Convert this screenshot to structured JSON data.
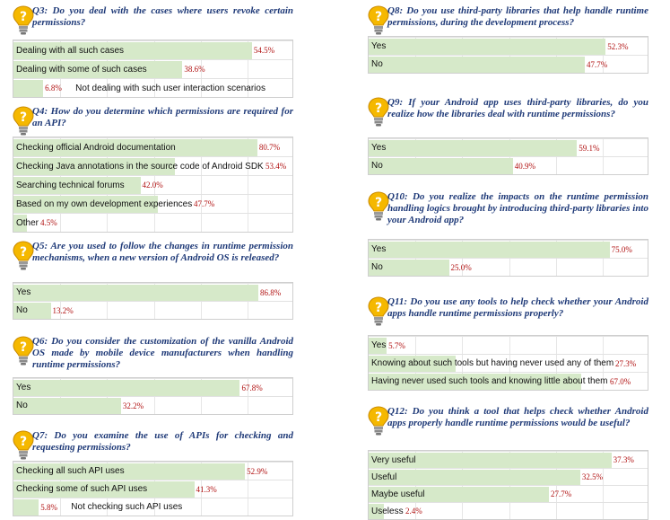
{
  "chart_data": [
    {
      "type": "bar",
      "title": "Q3: Do you deal with the cases where users revoke certain permissions?",
      "categories": [
        "Dealing with all such cases",
        "Dealing with some of such cases",
        "Not dealing with such user interaction scenarios"
      ],
      "values": [
        54.5,
        38.6,
        6.8
      ],
      "value_labels": [
        "54.5%",
        "38.6%",
        "6.8%"
      ]
    },
    {
      "type": "bar",
      "title": "Q4: How do you determine which permissions are required for an API?",
      "categories": [
        "Checking official Android documentation",
        "Checking Java annotations in the source code of Android SDK",
        "Searching technical forums",
        "Based on my own development experiences",
        "Other"
      ],
      "values": [
        80.7,
        53.4,
        42.0,
        47.7,
        4.5
      ],
      "value_labels": [
        "80.7%",
        "53.4%",
        "42.0%",
        "47.7%",
        "4.5%"
      ]
    },
    {
      "type": "bar",
      "title": "Q5: Are you used to follow the changes in runtime permission mechanisms, when a new version of Android OS is released?",
      "categories": [
        "Yes",
        "No"
      ],
      "values": [
        86.8,
        13.2
      ],
      "value_labels": [
        "86.8%",
        "13.2%"
      ]
    },
    {
      "type": "bar",
      "title": "Q6: Do you consider the customization of the vanilla Android OS made by mobile device manufacturers when handling runtime permissions?",
      "categories": [
        "Yes",
        "No"
      ],
      "values": [
        67.8,
        32.2
      ],
      "value_labels": [
        "67.8%",
        "32.2%"
      ]
    },
    {
      "type": "bar",
      "title": "Q7: Do you examine the use of APIs for checking and requesting permissions?",
      "categories": [
        "Checking all such API uses",
        "Checking some of such API uses",
        "Not checking such API uses"
      ],
      "values": [
        52.9,
        41.3,
        5.8
      ],
      "value_labels": [
        "52.9%",
        "41.3%",
        "5.8%"
      ]
    },
    {
      "type": "bar",
      "title": "Q8: Do you use third-party libraries that help handle runtime permissions, during the development process?",
      "categories": [
        "Yes",
        "No"
      ],
      "values": [
        52.3,
        47.7
      ],
      "value_labels": [
        "52.3%",
        "47.7%"
      ]
    },
    {
      "type": "bar",
      "title": "Q9: If your Android app uses third-party libraries, do you realize how the libraries deal with runtime permissions?",
      "categories": [
        "Yes",
        "No"
      ],
      "values": [
        59.1,
        40.9
      ],
      "value_labels": [
        "59.1%",
        "40.9%"
      ]
    },
    {
      "type": "bar",
      "title": "Q10: Do you realize the impacts on the runtime permission handling logics brought by introducing third-party libraries into your Android app?",
      "categories": [
        "Yes",
        "No"
      ],
      "values": [
        75.0,
        25.0
      ],
      "value_labels": [
        "75.0%",
        "25.0%"
      ]
    },
    {
      "type": "bar",
      "title": "Q11: Do you use any tools to help check whether your Android apps handle runtime permissions properly?",
      "categories": [
        "Yes",
        "Knowing about such tools but having never used any of them",
        "Having never used such tools and knowing little about them"
      ],
      "values": [
        5.7,
        27.3,
        67.0
      ],
      "value_labels": [
        "5.7%",
        "27.3%",
        "67.0%"
      ]
    },
    {
      "type": "bar",
      "title": "Q12: Do you think a tool that helps check whether Android apps properly handle runtime permissions would be useful?",
      "categories": [
        "Very useful",
        "Useful",
        "Maybe useful",
        "Useless"
      ],
      "values": [
        37.3,
        32.5,
        27.7,
        2.4
      ],
      "value_labels": [
        "37.3%",
        "32.5%",
        "27.7%",
        "2.4%"
      ]
    }
  ],
  "colors": {
    "bar": "#d6e9c9",
    "value": "#b01010",
    "question": "#1f3a78",
    "bulb": "#f5b800"
  },
  "icon": "lightbulb-question-icon"
}
